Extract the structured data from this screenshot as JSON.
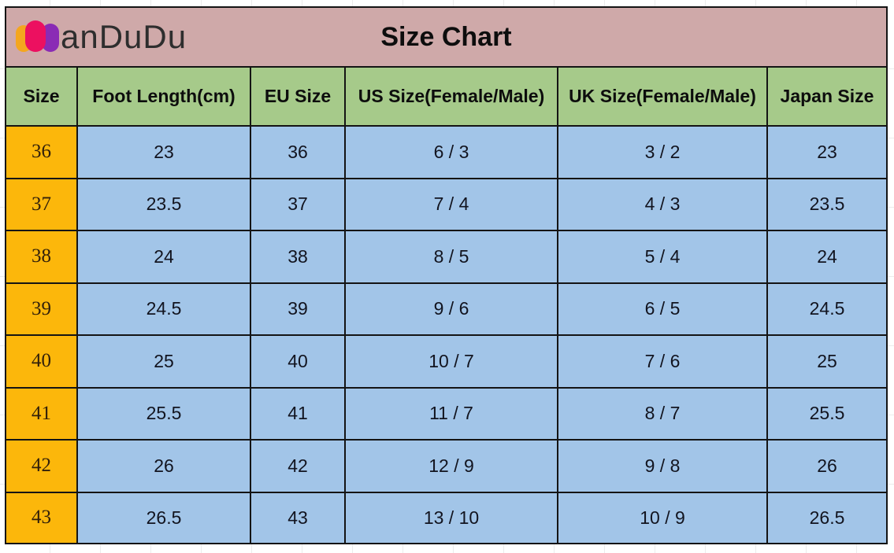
{
  "header": {
    "logo": {
      "text": "anDuDu",
      "mark_colors": [
        "#F4A61F",
        "#EC1060",
        "#8A2BB5"
      ]
    },
    "title": "Size Chart"
  },
  "colors": {
    "brand_bar_bg": "#CFA9A9",
    "column_header_bg": "#A6CA8A",
    "size_column_bg": "#FCB70B",
    "data_cell_bg": "#A2C5E8",
    "border": "#141414"
  },
  "chart_data": {
    "type": "table",
    "title": "Size Chart",
    "columns": [
      "Size",
      "Foot Length(cm)",
      "EU Size",
      "US Size(Female/Male)",
      "UK Size(Female/Male)",
      "Japan Size"
    ],
    "rows": [
      [
        "36",
        "23",
        "36",
        "6 / 3",
        "3 / 2",
        "23"
      ],
      [
        "37",
        "23.5",
        "37",
        "7 / 4",
        "4 / 3",
        "23.5"
      ],
      [
        "38",
        "24",
        "38",
        "8 / 5",
        "5 / 4",
        "24"
      ],
      [
        "39",
        "24.5",
        "39",
        "9 / 6",
        "6 / 5",
        "24.5"
      ],
      [
        "40",
        "25",
        "40",
        "10 / 7",
        "7 / 6",
        "25"
      ],
      [
        "41",
        "25.5",
        "41",
        "11 / 7",
        "8 / 7",
        "25.5"
      ],
      [
        "42",
        "26",
        "42",
        "12 / 9",
        "9 / 8",
        "26"
      ],
      [
        "43",
        "26.5",
        "43",
        "13 / 10",
        "10 / 9",
        "26.5"
      ]
    ]
  }
}
